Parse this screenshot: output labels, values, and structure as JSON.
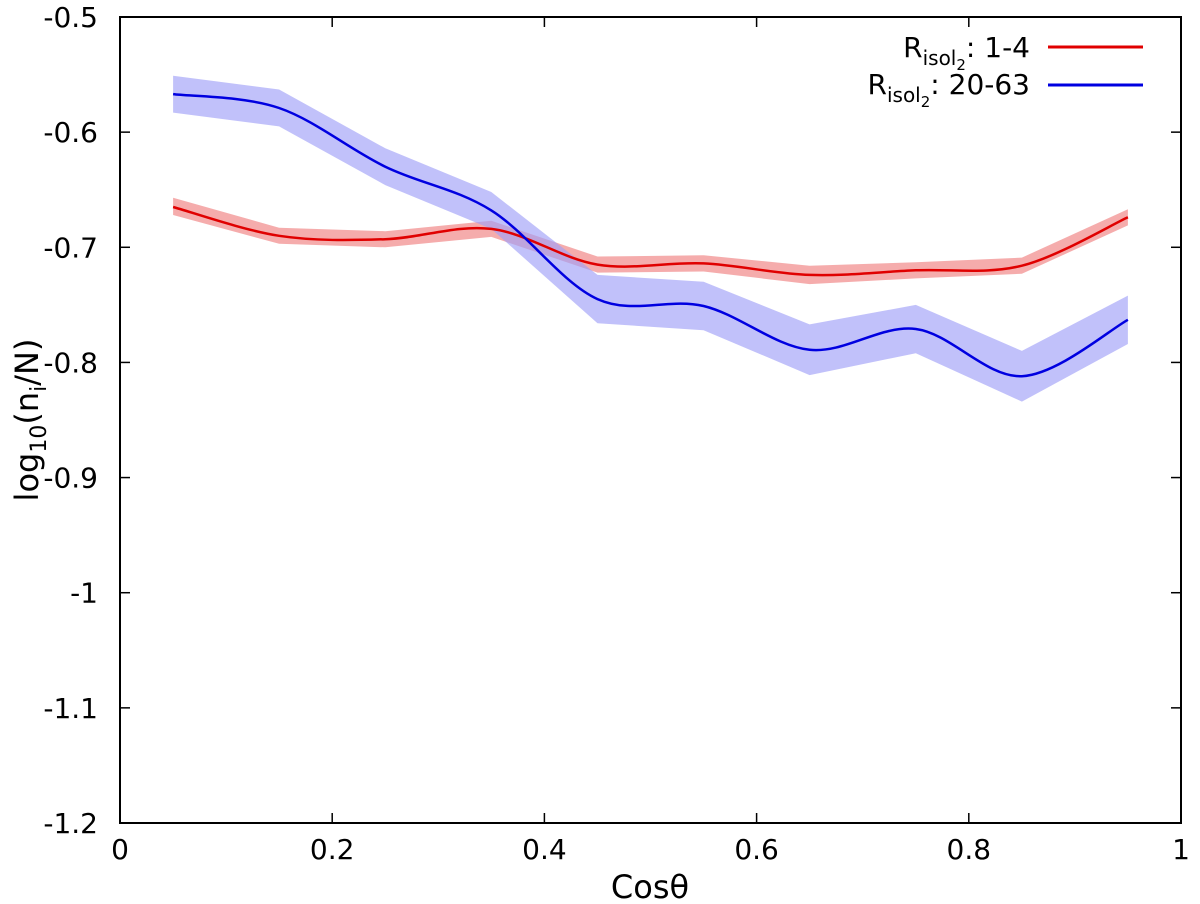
{
  "chart_data": {
    "type": "line",
    "title": "",
    "xlabel": "Cosθ",
    "ylabel": {
      "prefix": "log",
      "sub": "10",
      "mid": "(n",
      "sub2": "i",
      "suffix": "/N)"
    },
    "xlim": [
      0,
      1
    ],
    "ylim": [
      -1.2,
      -0.5
    ],
    "xticks": [
      0,
      0.2,
      0.4,
      0.6,
      0.8,
      1
    ],
    "xtick_labels": [
      "0",
      "0.2",
      "0.4",
      "0.6",
      "0.8",
      "1"
    ],
    "yticks": [
      -1.2,
      -1.1,
      -1.0,
      -0.9,
      -0.8,
      -0.7,
      -0.6,
      -0.5
    ],
    "ytick_labels": [
      "-1.2",
      "-1.1",
      "-1",
      "-0.9",
      "-0.8",
      "-0.7",
      "-0.6",
      "-0.5"
    ],
    "grid": false,
    "legend_position": "top-right",
    "x": [
      0.05,
      0.15,
      0.25,
      0.35,
      0.45,
      0.55,
      0.65,
      0.75,
      0.85,
      0.95
    ],
    "series": [
      {
        "name": "R_isol2: 1-4",
        "legend": {
          "main": "R",
          "sub": "isol",
          "sub2": "2",
          "range": ": 1-4"
        },
        "color": "#e00000",
        "band_color": "#f08080",
        "values": [
          -0.665,
          -0.69,
          -0.693,
          -0.684,
          -0.715,
          -0.714,
          -0.724,
          -0.72,
          -0.716,
          -0.674
        ],
        "lower": [
          -0.672,
          -0.697,
          -0.7,
          -0.691,
          -0.722,
          -0.721,
          -0.732,
          -0.727,
          -0.723,
          -0.681
        ],
        "upper": [
          -0.657,
          -0.683,
          -0.686,
          -0.677,
          -0.708,
          -0.707,
          -0.716,
          -0.713,
          -0.709,
          -0.667
        ]
      },
      {
        "name": "R_isol2: 20-63",
        "legend": {
          "main": "R",
          "sub": "isol",
          "sub2": "2",
          "range": ": 20-63"
        },
        "color": "#0000e0",
        "band_color": "#a0a0f8",
        "values": [
          -0.567,
          -0.579,
          -0.63,
          -0.668,
          -0.745,
          -0.751,
          -0.789,
          -0.771,
          -0.812,
          -0.763
        ],
        "lower": [
          -0.583,
          -0.595,
          -0.646,
          -0.684,
          -0.766,
          -0.772,
          -0.811,
          -0.792,
          -0.834,
          -0.784
        ],
        "upper": [
          -0.551,
          -0.563,
          -0.614,
          -0.652,
          -0.724,
          -0.73,
          -0.767,
          -0.75,
          -0.79,
          -0.742
        ]
      }
    ]
  }
}
